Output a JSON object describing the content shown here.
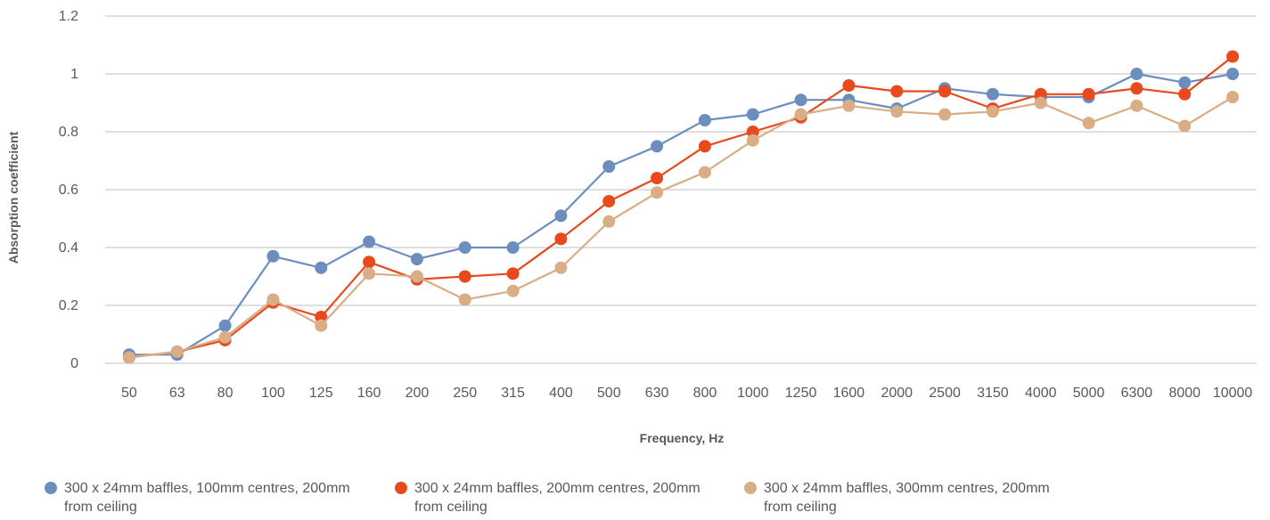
{
  "chart_data": {
    "type": "line",
    "xlabel": "Frequency, Hz",
    "ylabel": "Absorption coefficient",
    "ylim": [
      0,
      1.2
    ],
    "yticks": [
      "0",
      "0.2",
      "0.4",
      "0.6",
      "0.8",
      "1",
      "1.2"
    ],
    "categories": [
      "50",
      "63",
      "80",
      "100",
      "125",
      "160",
      "200",
      "250",
      "315",
      "400",
      "500",
      "630",
      "800",
      "1000",
      "1250",
      "1600",
      "2000",
      "2500",
      "3150",
      "4000",
      "5000",
      "6300",
      "8000",
      "10000"
    ],
    "grid": true,
    "legend_position": "bottom",
    "series": [
      {
        "name": "300 x 24mm baffles, 100mm centres, 200mm from ceiling",
        "color": "#6c8ebf",
        "values": [
          0.03,
          0.03,
          0.13,
          0.37,
          0.33,
          0.42,
          0.36,
          0.4,
          0.4,
          0.51,
          0.68,
          0.75,
          0.84,
          0.86,
          0.91,
          0.91,
          0.88,
          0.95,
          0.93,
          0.92,
          0.92,
          1.0,
          0.97,
          1.0
        ]
      },
      {
        "name": "300 x 24mm baffles, 200mm centres, 200mm from ceiling",
        "color": "#e8491d",
        "values": [
          0.02,
          0.04,
          0.08,
          0.21,
          0.16,
          0.35,
          0.29,
          0.3,
          0.31,
          0.43,
          0.56,
          0.64,
          0.75,
          0.8,
          0.85,
          0.96,
          0.94,
          0.94,
          0.88,
          0.93,
          0.93,
          0.95,
          0.93,
          1.06
        ]
      },
      {
        "name": "300 x 24mm baffles, 300mm centres, 200mm from ceiling",
        "color": "#d9ad85",
        "values": [
          0.02,
          0.04,
          0.09,
          0.22,
          0.13,
          0.31,
          0.3,
          0.22,
          0.25,
          0.33,
          0.49,
          0.59,
          0.66,
          0.77,
          0.86,
          0.89,
          0.87,
          0.86,
          0.87,
          0.9,
          0.83,
          0.89,
          0.82,
          0.92
        ]
      }
    ]
  }
}
